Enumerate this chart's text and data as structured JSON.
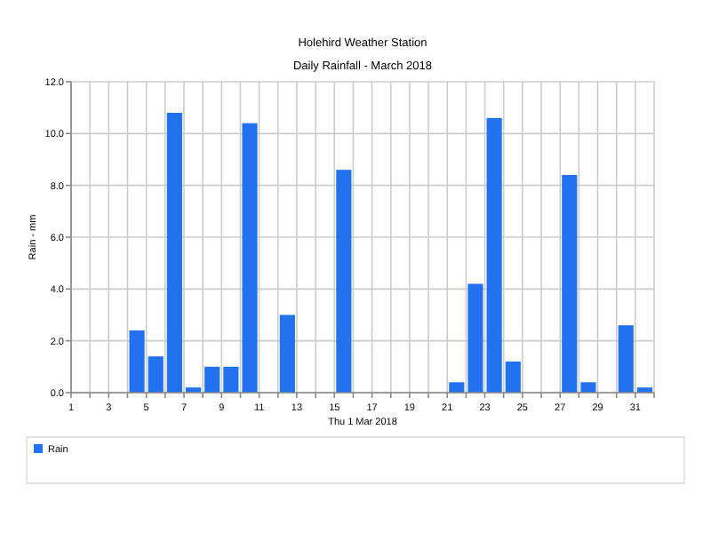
{
  "chart_data": {
    "type": "bar",
    "title": "Holehird Weather Station",
    "subtitle": "Daily Rainfall - March 2018",
    "xlabel": "Thu 1 Mar 2018",
    "ylabel": "Rain - mm",
    "x": [
      4.5,
      5.5,
      6.5,
      7.5,
      8.5,
      9.5,
      10.5,
      12.5,
      15.5,
      21.5,
      22.5,
      23.5,
      24.5,
      27.5,
      28.5,
      30.5,
      31.5
    ],
    "series": [
      {
        "name": "Rain",
        "color": "#2272f0",
        "values": [
          2.4,
          1.4,
          10.8,
          0.2,
          1.0,
          1.0,
          10.4,
          3.0,
          8.6,
          0.4,
          4.2,
          10.6,
          1.2,
          8.4,
          0.4,
          2.6,
          0.2
        ]
      }
    ],
    "xlim": [
      1,
      32
    ],
    "xticks": [
      1,
      {
        "value": 2,
        "label": null
      },
      3,
      {
        "value": 4,
        "label": null
      },
      5,
      {
        "value": 6,
        "label": null
      },
      7,
      {
        "value": 8,
        "label": null
      },
      9,
      {
        "value": 10,
        "label": null
      },
      11,
      {
        "value": 12,
        "label": null
      },
      13,
      {
        "value": 14,
        "label": null
      },
      15,
      {
        "value": 16,
        "label": null
      },
      17,
      {
        "value": 18,
        "label": null
      },
      19,
      {
        "value": 20,
        "label": null
      },
      21,
      {
        "value": 22,
        "label": null
      },
      23,
      {
        "value": 24,
        "label": null
      },
      25,
      {
        "value": 26,
        "label": null
      },
      27,
      {
        "value": 28,
        "label": null
      },
      29,
      {
        "value": 30,
        "label": null
      },
      31,
      {
        "value": 32,
        "label": null
      }
    ],
    "ylim": [
      0,
      12
    ],
    "yticks": [
      {
        "value": 0,
        "label": "0.0"
      },
      {
        "value": 2,
        "label": "2.0"
      },
      {
        "value": 4,
        "label": "4.0"
      },
      {
        "value": 6,
        "label": "6.0"
      },
      {
        "value": 8,
        "label": "8.0"
      },
      {
        "value": 10,
        "label": "10.0"
      },
      {
        "value": 12,
        "label": "12.0"
      }
    ],
    "grid": true,
    "legend": "bottom"
  }
}
